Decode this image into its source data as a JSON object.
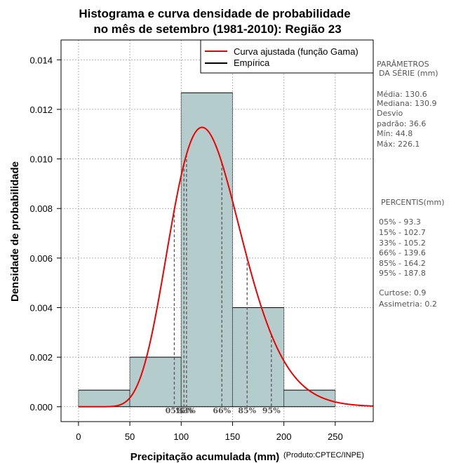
{
  "chart_data": {
    "type": "histogram",
    "title_line1": "Histograma e curva densidade de probabilidade",
    "title_line2": "no mês de setembro (1981-2010): Região 23",
    "xlabel": "Precipitação acumulada (mm)",
    "ylabel": "Densidade de probabilidade",
    "credit": "(Produto:CPTEC/INPE)",
    "xlim": [
      -17,
      287
    ],
    "ylim": [
      -0.0006,
      0.0148
    ],
    "x_ticks": [
      0,
      50,
      100,
      150,
      200,
      250
    ],
    "x_tick_labels": [
      "0",
      "50",
      "100",
      "150",
      "200",
      "250"
    ],
    "y_ticks": [
      0.0,
      0.002,
      0.004,
      0.006,
      0.008,
      0.01,
      0.012,
      0.014
    ],
    "y_tick_labels": [
      "0.000",
      "0.002",
      "0.004",
      "0.006",
      "0.008",
      "0.010",
      "0.012",
      "0.014"
    ],
    "bins": [
      {
        "x0": 0,
        "x1": 50,
        "density": 0.00067
      },
      {
        "x0": 50,
        "x1": 100,
        "density": 0.002
      },
      {
        "x0": 100,
        "x1": 150,
        "density": 0.01267
      },
      {
        "x0": 150,
        "x1": 200,
        "density": 0.004
      },
      {
        "x0": 200,
        "x1": 250,
        "density": 0.00067
      }
    ],
    "gamma_fit": {
      "mean": 130.6,
      "sd": 36.6
    },
    "percentile_markers": [
      {
        "label": "05%",
        "x": 93.3
      },
      {
        "label": "15%",
        "x": 102.7
      },
      {
        "label": "33%",
        "x": 105.2
      },
      {
        "label": "66%",
        "x": 139.6
      },
      {
        "label": "85%",
        "x": 164.2
      },
      {
        "label": "95%",
        "x": 187.8
      }
    ],
    "legend": [
      {
        "label": "Curva ajustada (função Gama)",
        "color": "#ee0000"
      },
      {
        "label": "Empírica",
        "color": "#000000"
      }
    ],
    "colors": {
      "bar_fill": "#b4cccc",
      "curve": "#ee0000",
      "grid": "#b0b0b0",
      "marker": "#555555"
    }
  },
  "side_panel": {
    "params_title_1": "PARÂMETROS",
    "params_title_2": "DA SÉRIE (mm)",
    "params": [
      "Média:  130.6",
      "Mediana:  130.9",
      "Desvio",
      "padrão:  36.6",
      "Mín:  44.8",
      "Máx:  226.1"
    ],
    "percentis_title": "PERCENTIS(mm)",
    "percentis": [
      "05% -  93.3",
      "15% -  102.7",
      "33% -  105.2",
      "66% -  139.6",
      "85% -  164.2",
      "95% -  187.8"
    ],
    "shape": [
      "Curtose:  0.9",
      "Assimetria:  0.2"
    ]
  }
}
